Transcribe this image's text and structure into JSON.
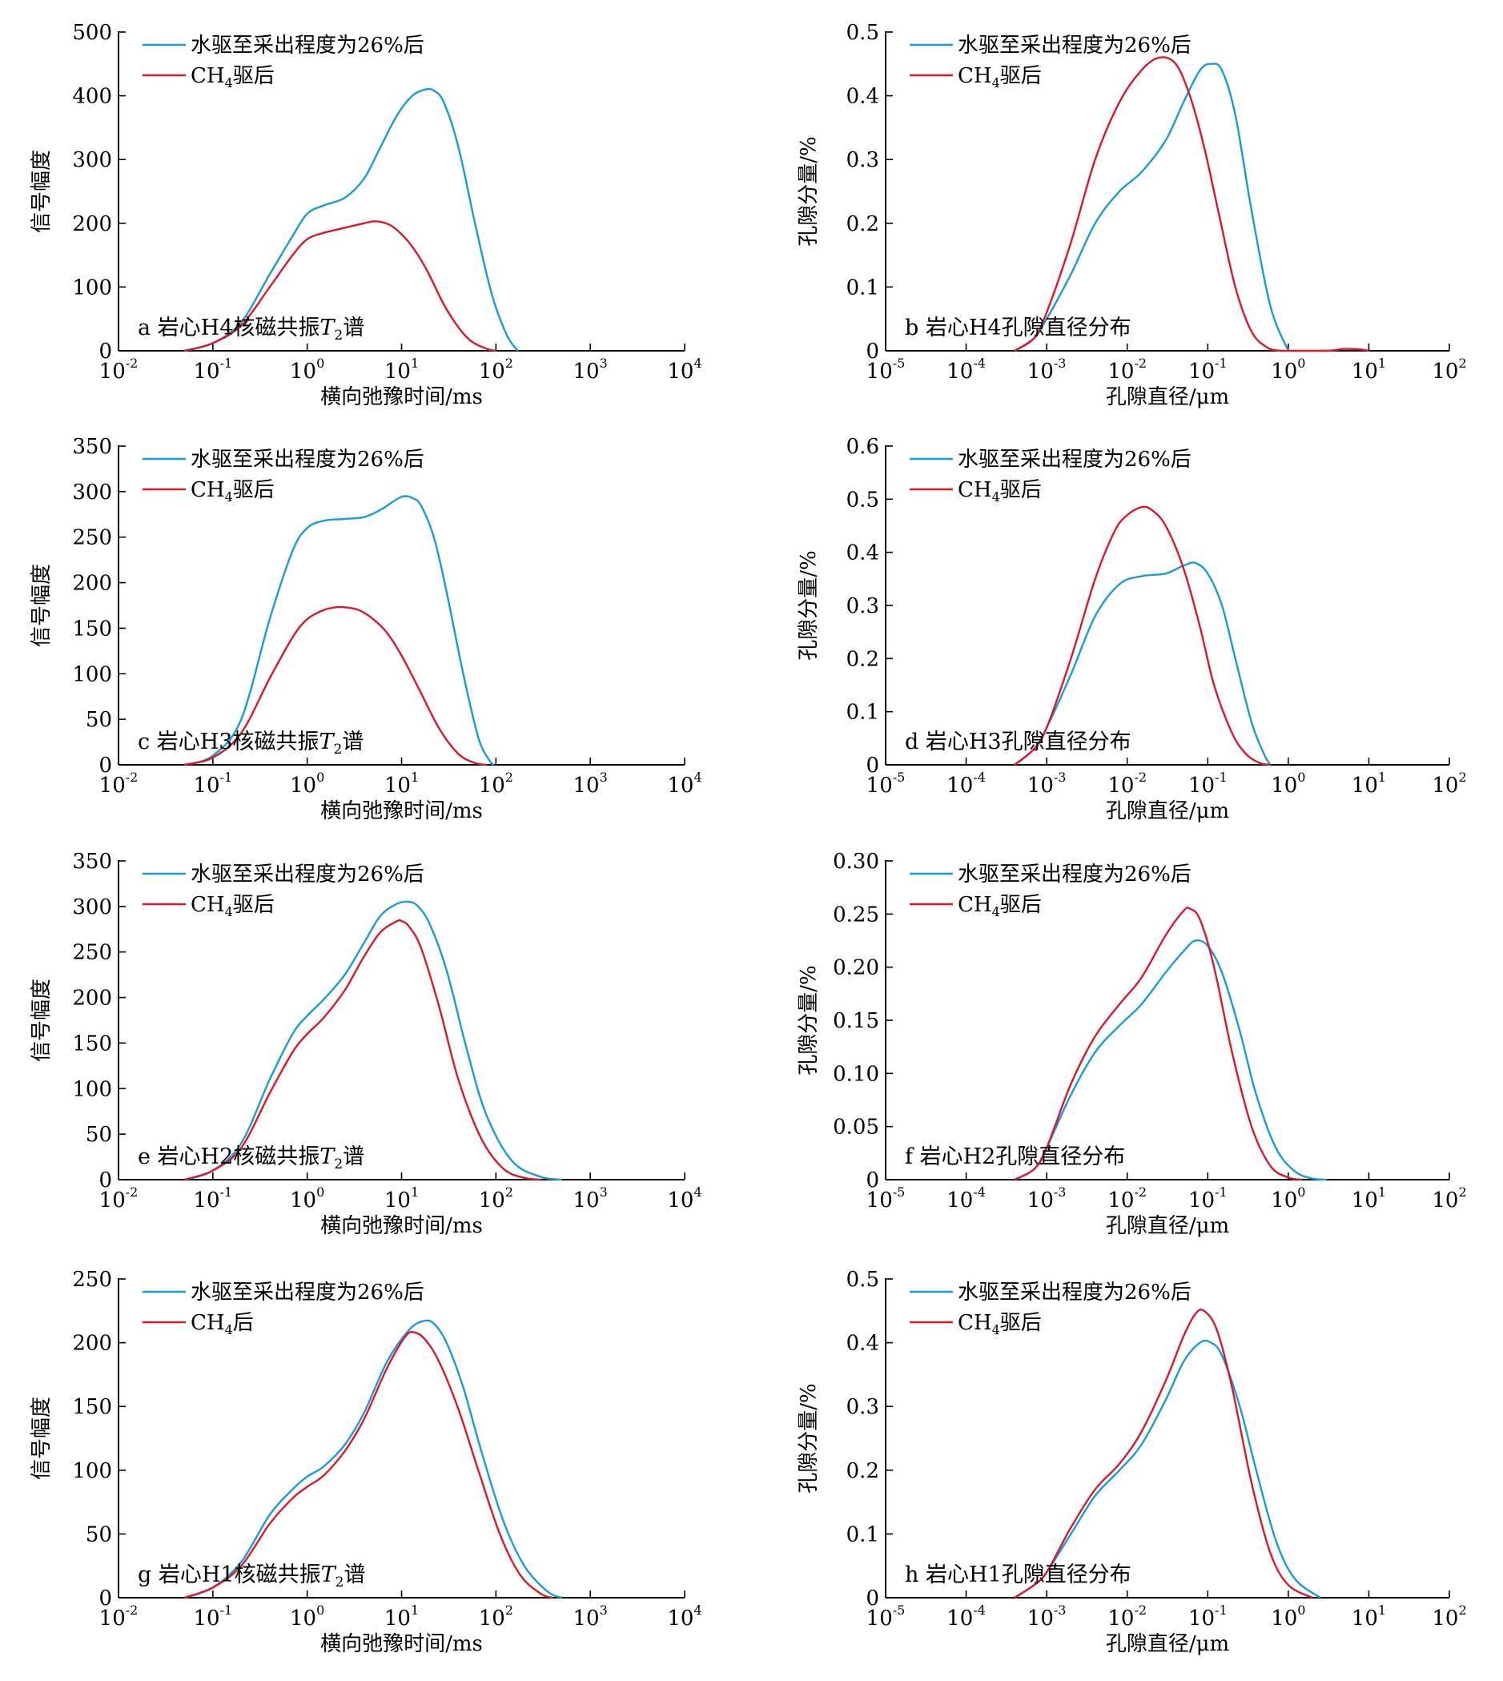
{
  "colors": {
    "series_water": "#1a9bd7",
    "series_ch4": "#d7192b",
    "axis": "#000000"
  },
  "chart_data": [
    {
      "id": "a",
      "type": "line",
      "x_scale": "log",
      "xlim": [
        0.01,
        10000
      ],
      "ylim": [
        0,
        500
      ],
      "yticks": [
        "0",
        "100",
        "200",
        "300",
        "400",
        "500"
      ],
      "xlabel": "横向弛豫时间/ms",
      "ylabel": "信号幅度",
      "xtick_exponents": [
        "-2",
        "-1",
        "0",
        "1",
        "2",
        "3",
        "4"
      ],
      "panel_label": {
        "prefix": "a 岩心H4核磁共振",
        "sym": "T",
        "sub": "2",
        "suffix": "谱"
      },
      "legend": [
        {
          "a": "水驱至采出程度为26%后"
        },
        {
          "a": "CH",
          "sub": "4",
          "b": "驱后"
        }
      ],
      "series": [
        {
          "x": [
            0.05,
            0.1,
            0.2,
            0.4,
            0.7,
            1,
            1.5,
            2.5,
            4,
            6,
            9,
            13,
            18,
            22,
            28,
            40,
            60,
            90,
            130,
            170
          ],
          "y": [
            0,
            12,
            45,
            120,
            180,
            215,
            228,
            240,
            270,
            320,
            370,
            400,
            410,
            408,
            390,
            320,
            200,
            90,
            25,
            0
          ]
        },
        {
          "x": [
            0.05,
            0.1,
            0.2,
            0.4,
            0.7,
            1,
            1.5,
            2.5,
            4,
            5,
            6,
            8,
            12,
            18,
            30,
            50,
            80,
            100
          ],
          "y": [
            0,
            12,
            40,
            100,
            150,
            175,
            185,
            193,
            200,
            203,
            202,
            195,
            170,
            130,
            65,
            20,
            3,
            0
          ]
        }
      ]
    },
    {
      "id": "b",
      "type": "line",
      "x_scale": "log",
      "xlim": [
        1e-05,
        100
      ],
      "ylim": [
        0,
        0.5
      ],
      "yticks": [
        "0",
        "0.1",
        "0.2",
        "0.3",
        "0.4",
        "0.5"
      ],
      "xlabel": "孔隙直径/μm",
      "ylabel": "孔隙分量/%",
      "xtick_exponents": [
        "-5",
        "-4",
        "-3",
        "-2",
        "-1",
        "0",
        "1",
        "2"
      ],
      "panel_label": {
        "prefix": "b 岩心H4孔隙直径分布"
      },
      "legend": [
        {
          "a": "水驱至采出程度为26%后"
        },
        {
          "a": "CH",
          "sub": "4",
          "b": "驱后"
        }
      ],
      "series": [
        {
          "x": [
            0.0004,
            0.0007,
            0.001,
            0.002,
            0.004,
            0.008,
            0.015,
            0.03,
            0.05,
            0.08,
            0.11,
            0.15,
            0.22,
            0.35,
            0.6,
            1.0
          ],
          "y": [
            0,
            0.02,
            0.05,
            0.12,
            0.2,
            0.25,
            0.28,
            0.33,
            0.39,
            0.44,
            0.45,
            0.44,
            0.37,
            0.22,
            0.07,
            0
          ]
        },
        {
          "x": [
            0.0004,
            0.0007,
            0.001,
            0.002,
            0.004,
            0.008,
            0.015,
            0.025,
            0.04,
            0.06,
            0.09,
            0.14,
            0.22,
            0.35,
            0.55,
            0.8,
            1.0,
            3,
            5,
            8,
            10
          ],
          "y": [
            0,
            0.02,
            0.06,
            0.17,
            0.3,
            0.39,
            0.44,
            0.46,
            0.45,
            0.4,
            0.32,
            0.21,
            0.1,
            0.03,
            0.005,
            0,
            0,
            0,
            0.003,
            0.002,
            0
          ]
        }
      ]
    },
    {
      "id": "c",
      "type": "line",
      "x_scale": "log",
      "xlim": [
        0.01,
        10000
      ],
      "ylim": [
        0,
        350
      ],
      "yticks": [
        "0",
        "50",
        "100",
        "150",
        "200",
        "250",
        "300",
        "350"
      ],
      "xlabel": "横向弛豫时间/ms",
      "ylabel": "信号幅度",
      "xtick_exponents": [
        "-2",
        "-1",
        "0",
        "1",
        "2",
        "3",
        "4"
      ],
      "panel_label": {
        "prefix": "c 岩心H3核磁共振",
        "sym": "T",
        "sub": "2",
        "suffix": "谱"
      },
      "legend": [
        {
          "a": "水驱至采出程度为26%后"
        },
        {
          "a": "CH",
          "sub": "4",
          "b": "驱后"
        }
      ],
      "series": [
        {
          "x": [
            0.05,
            0.1,
            0.2,
            0.4,
            0.7,
            1,
            1.5,
            2.5,
            4,
            6,
            9,
            11,
            13,
            16,
            22,
            30,
            45,
            65,
            85,
            95
          ],
          "y": [
            0,
            10,
            50,
            160,
            235,
            260,
            268,
            270,
            272,
            280,
            292,
            295,
            293,
            285,
            250,
            190,
            100,
            30,
            5,
            0
          ]
        },
        {
          "x": [
            0.05,
            0.1,
            0.2,
            0.4,
            0.7,
            1,
            1.5,
            2,
            2.5,
            3.5,
            5,
            7,
            10,
            15,
            25,
            40,
            60,
            80
          ],
          "y": [
            0,
            8,
            35,
            95,
            140,
            160,
            170,
            173,
            173,
            170,
            160,
            145,
            120,
            85,
            40,
            12,
            2,
            0
          ]
        }
      ]
    },
    {
      "id": "d",
      "type": "line",
      "x_scale": "log",
      "xlim": [
        1e-05,
        100
      ],
      "ylim": [
        0,
        0.6
      ],
      "yticks": [
        "0",
        "0.1",
        "0.2",
        "0.3",
        "0.4",
        "0.5",
        "0.6"
      ],
      "xlabel": "孔隙直径/μm",
      "ylabel": "孔隙分量/%",
      "xtick_exponents": [
        "-5",
        "-4",
        "-3",
        "-2",
        "-1",
        "0",
        "1",
        "2"
      ],
      "panel_label": {
        "prefix": "d 岩心H3孔隙直径分布"
      },
      "legend": [
        {
          "a": "水驱至采出程度为26%后"
        },
        {
          "a": "CH",
          "sub": "4",
          "b": "驱后"
        }
      ],
      "series": [
        {
          "x": [
            0.0004,
            0.0007,
            0.001,
            0.002,
            0.004,
            0.008,
            0.015,
            0.03,
            0.05,
            0.07,
            0.1,
            0.15,
            0.22,
            0.35,
            0.5,
            0.6
          ],
          "y": [
            0,
            0.03,
            0.07,
            0.17,
            0.28,
            0.34,
            0.355,
            0.36,
            0.375,
            0.38,
            0.36,
            0.3,
            0.2,
            0.08,
            0.02,
            0
          ]
        },
        {
          "x": [
            0.0004,
            0.0007,
            0.001,
            0.002,
            0.004,
            0.007,
            0.01,
            0.015,
            0.02,
            0.03,
            0.05,
            0.08,
            0.12,
            0.2,
            0.3,
            0.45,
            0.6
          ],
          "y": [
            0,
            0.03,
            0.07,
            0.2,
            0.35,
            0.44,
            0.47,
            0.485,
            0.48,
            0.45,
            0.37,
            0.26,
            0.15,
            0.06,
            0.02,
            0.003,
            0
          ]
        }
      ]
    },
    {
      "id": "e",
      "type": "line",
      "x_scale": "log",
      "xlim": [
        0.01,
        10000
      ],
      "ylim": [
        0,
        350
      ],
      "yticks": [
        "0",
        "50",
        "100",
        "150",
        "200",
        "250",
        "300",
        "350"
      ],
      "xlabel": "横向弛豫时间/ms",
      "ylabel": "信号幅度",
      "xtick_exponents": [
        "-2",
        "-1",
        "0",
        "1",
        "2",
        "3",
        "4"
      ],
      "panel_label": {
        "prefix": "e 岩心H2核磁共振",
        "sym": "T",
        "sub": "2",
        "suffix": "谱"
      },
      "legend": [
        {
          "a": "水驱至采出程度为26%后"
        },
        {
          "a": "CH",
          "sub": "4",
          "b": "驱后"
        }
      ],
      "series": [
        {
          "x": [
            0.05,
            0.1,
            0.2,
            0.4,
            0.7,
            1,
            1.5,
            2.5,
            4,
            6,
            9,
            12,
            15,
            20,
            30,
            50,
            80,
            150,
            300,
            500
          ],
          "y": [
            0,
            10,
            40,
            110,
            160,
            180,
            198,
            225,
            260,
            290,
            303,
            305,
            300,
            280,
            230,
            140,
            70,
            20,
            3,
            0
          ]
        },
        {
          "x": [
            0.05,
            0.1,
            0.2,
            0.4,
            0.7,
            1,
            1.5,
            2.5,
            4,
            6,
            9,
            10,
            12,
            16,
            25,
            40,
            70,
            120,
            200,
            300
          ],
          "y": [
            0,
            10,
            35,
            95,
            140,
            160,
            178,
            208,
            245,
            272,
            284,
            284,
            278,
            255,
            190,
            110,
            45,
            12,
            2,
            0
          ]
        }
      ]
    },
    {
      "id": "f",
      "type": "line",
      "x_scale": "log",
      "xlim": [
        1e-05,
        100
      ],
      "ylim": [
        0,
        0.3
      ],
      "yticks": [
        "0",
        "0.05",
        "0.10",
        "0.15",
        "0.20",
        "0.25",
        "0.30"
      ],
      "xlabel": "孔隙直径/μm",
      "ylabel": "孔隙分量/%",
      "xtick_exponents": [
        "-5",
        "-4",
        "-3",
        "-2",
        "-1",
        "0",
        "1",
        "2"
      ],
      "panel_label": {
        "prefix": "f 岩心H2孔隙直径分布"
      },
      "legend": [
        {
          "a": "水驱至采出程度为26%后"
        },
        {
          "a": "CH",
          "sub": "4",
          "b": "驱后"
        }
      ],
      "series": [
        {
          "x": [
            0.0004,
            0.0007,
            0.001,
            0.002,
            0.004,
            0.008,
            0.015,
            0.03,
            0.05,
            0.07,
            0.1,
            0.15,
            0.25,
            0.4,
            0.7,
            1.2,
            2,
            3
          ],
          "y": [
            0,
            0.01,
            0.03,
            0.08,
            0.12,
            0.145,
            0.165,
            0.195,
            0.215,
            0.225,
            0.22,
            0.195,
            0.14,
            0.08,
            0.03,
            0.008,
            0.001,
            0
          ]
        },
        {
          "x": [
            0.0004,
            0.0007,
            0.001,
            0.002,
            0.004,
            0.008,
            0.015,
            0.03,
            0.05,
            0.06,
            0.08,
            0.12,
            0.2,
            0.35,
            0.6,
            1.0,
            1.5
          ],
          "y": [
            0,
            0.01,
            0.03,
            0.09,
            0.135,
            0.165,
            0.19,
            0.23,
            0.253,
            0.255,
            0.245,
            0.2,
            0.12,
            0.05,
            0.013,
            0.002,
            0
          ]
        }
      ]
    },
    {
      "id": "g",
      "type": "line",
      "x_scale": "log",
      "xlim": [
        0.01,
        10000
      ],
      "ylim": [
        0,
        250
      ],
      "yticks": [
        "0",
        "50",
        "100",
        "150",
        "200",
        "250"
      ],
      "xlabel": "横向弛豫时间/ms",
      "ylabel": "信号幅度",
      "xtick_exponents": [
        "-2",
        "-1",
        "0",
        "1",
        "2",
        "3",
        "4"
      ],
      "panel_label": {
        "prefix": "g 岩心H1核磁共振",
        "sym": "T",
        "sub": "2",
        "suffix": "谱"
      },
      "legend": [
        {
          "a": "水驱至采出程度为26%后"
        },
        {
          "a": "CH",
          "sub": "4",
          "b": "后"
        }
      ],
      "series": [
        {
          "x": [
            0.05,
            0.1,
            0.2,
            0.4,
            0.7,
            1,
            1.5,
            2.5,
            4,
            7,
            12,
            17,
            22,
            30,
            45,
            70,
            120,
            200,
            350,
            500
          ],
          "y": [
            0,
            8,
            28,
            65,
            85,
            95,
            103,
            120,
            145,
            185,
            210,
            217,
            215,
            200,
            165,
            115,
            60,
            25,
            5,
            0
          ]
        },
        {
          "x": [
            0.05,
            0.1,
            0.2,
            0.4,
            0.7,
            1,
            1.5,
            2.5,
            4,
            7,
            11,
            14,
            18,
            25,
            40,
            65,
            110,
            180,
            300,
            400
          ],
          "y": [
            0,
            8,
            25,
            58,
            78,
            87,
            96,
            115,
            140,
            180,
            205,
            208,
            202,
            185,
            148,
            100,
            50,
            18,
            3,
            0
          ]
        }
      ]
    },
    {
      "id": "h",
      "type": "line",
      "x_scale": "log",
      "xlim": [
        1e-05,
        100
      ],
      "ylim": [
        0,
        0.5
      ],
      "yticks": [
        "0",
        "0.1",
        "0.2",
        "0.3",
        "0.4",
        "0.5"
      ],
      "xlabel": "孔隙直径/μm",
      "ylabel": "孔隙分量/%",
      "xtick_exponents": [
        "-5",
        "-4",
        "-3",
        "-2",
        "-1",
        "0",
        "1",
        "2"
      ],
      "panel_label": {
        "prefix": "h 岩心H1孔隙直径分布"
      },
      "legend": [
        {
          "a": "水驱至采出程度为26%后"
        },
        {
          "a": "CH",
          "sub": "4",
          "b": "驱后"
        }
      ],
      "series": [
        {
          "x": [
            0.0004,
            0.0007,
            0.001,
            0.002,
            0.004,
            0.008,
            0.015,
            0.03,
            0.05,
            0.08,
            0.11,
            0.15,
            0.25,
            0.4,
            0.7,
            1.2,
            2.5
          ],
          "y": [
            0,
            0.02,
            0.04,
            0.1,
            0.16,
            0.2,
            0.24,
            0.31,
            0.37,
            0.4,
            0.4,
            0.38,
            0.3,
            0.2,
            0.09,
            0.03,
            0
          ]
        },
        {
          "x": [
            0.0004,
            0.0007,
            0.001,
            0.002,
            0.004,
            0.008,
            0.015,
            0.03,
            0.05,
            0.07,
            0.09,
            0.13,
            0.2,
            0.35,
            0.6,
            1.0,
            2.0
          ],
          "y": [
            0,
            0.02,
            0.04,
            0.11,
            0.17,
            0.21,
            0.26,
            0.34,
            0.41,
            0.445,
            0.45,
            0.42,
            0.33,
            0.18,
            0.07,
            0.02,
            0
          ]
        }
      ]
    }
  ]
}
